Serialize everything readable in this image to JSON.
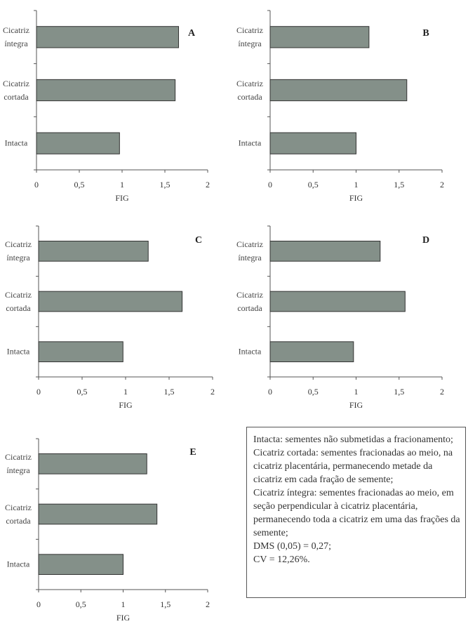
{
  "chart_data": [
    {
      "type": "barh",
      "title": "A",
      "xlabel": "FIG",
      "categories": [
        "Cicatriz íntegra",
        "Cicatriz cortada",
        "Intacta"
      ],
      "values": [
        1.66,
        1.62,
        0.97
      ],
      "color": "#849089",
      "xlim": [
        0,
        2
      ],
      "xticks": [
        0,
        {
          "value": 0.5,
          "label": "0,5"
        },
        1,
        {
          "value": 1.5,
          "label": "1,5"
        },
        2
      ]
    },
    {
      "type": "barh",
      "title": "B",
      "xlabel": "FIG",
      "categories": [
        "Cicatriz íntegra",
        "Cicatriz cortada",
        "Intacta"
      ],
      "values": [
        1.15,
        1.59,
        1.0
      ],
      "color": "#849089",
      "xlim": [
        0,
        2
      ],
      "xticks": [
        0,
        {
          "value": 0.5,
          "label": "0,5"
        },
        1,
        {
          "value": 1.5,
          "label": "1,5"
        },
        2
      ]
    },
    {
      "type": "barh",
      "title": "C",
      "xlabel": "FIG",
      "categories": [
        "Cicatriz íntegra",
        "Cicatriz cortada",
        "Intacta"
      ],
      "values": [
        1.26,
        1.65,
        0.97
      ],
      "color": "#849089",
      "xlim": [
        0,
        2
      ],
      "xticks": [
        0,
        {
          "value": 0.5,
          "label": "0,5"
        },
        1,
        {
          "value": 1.5,
          "label": "1,5"
        },
        2
      ]
    },
    {
      "type": "barh",
      "title": "D",
      "xlabel": "FIG",
      "categories": [
        "Cicatriz íntegra",
        "Cicatriz cortada",
        "Intacta"
      ],
      "values": [
        1.28,
        1.57,
        0.97
      ],
      "color": "#849089",
      "xlim": [
        0,
        2
      ],
      "xticks": [
        0,
        {
          "value": 0.5,
          "label": "0,5"
        },
        1,
        {
          "value": 1.5,
          "label": "1,5"
        },
        2
      ]
    },
    {
      "type": "barh",
      "title": "E",
      "xlabel": "FIG",
      "categories": [
        "Cicatriz íntegra",
        "Cicatriz cortada",
        "Intacta"
      ],
      "values": [
        1.28,
        1.4,
        1.0
      ],
      "color": "#849089",
      "xlim": [
        0,
        2
      ],
      "xticks": [
        0,
        {
          "value": 0.5,
          "label": "0,5"
        },
        1,
        {
          "value": 1.5,
          "label": "1,5"
        },
        2
      ]
    }
  ],
  "legend_box": {
    "lines": [
      "Intacta: sementes não submetidas a fracionamento;",
      "Cicatriz cortada: sementes fracionadas ao meio, na cicatriz placentária, permanecendo metade da cicatriz em cada fração de semente;",
      "Cicatriz íntegra: sementes fracionadas ao meio, em seção perpendicular à cicatriz placentária, permanecendo toda a cicatriz em uma das frações da semente;",
      "DMS (0,05) = 0,27;",
      "CV = 12,26%."
    ]
  }
}
